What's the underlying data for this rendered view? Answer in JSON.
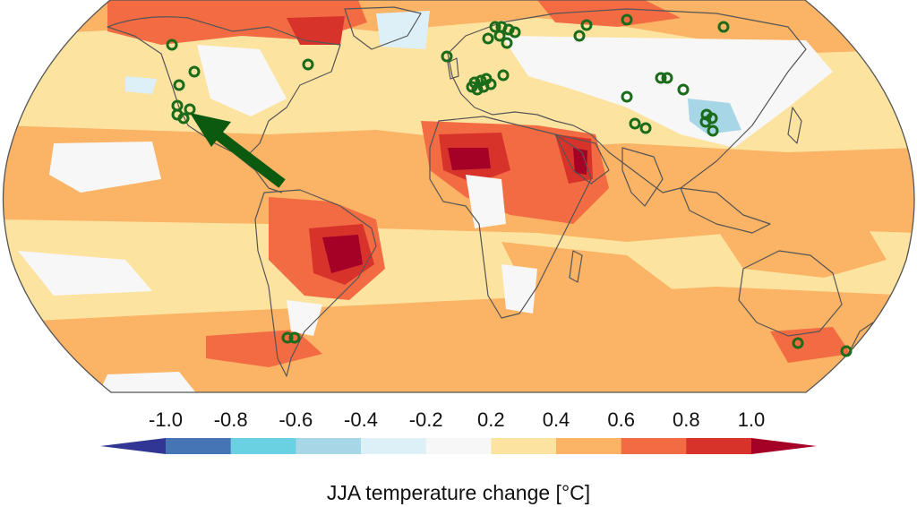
{
  "colorbar": {
    "title": "JJA temperature change [°C]",
    "tick_labels": [
      "-1.0",
      "-0.8",
      "-0.6",
      "-0.4",
      "-0.2",
      "0.2",
      "0.4",
      "0.6",
      "0.8",
      "1.0"
    ],
    "bin_colors": [
      "#4575b4",
      "#6ad1e3",
      "#a7d6e6",
      "#ddf0f7",
      "#f7f7f7",
      "#fde3a0",
      "#fbb365",
      "#f26b43",
      "#d7332b"
    ],
    "under_color": "#313695",
    "over_color": "#a50026"
  },
  "map": {
    "projection": "robinson",
    "ocean_background_color": "#fde3a0",
    "coastline_color": "#555555",
    "marker_color": "#1a6b1a",
    "arrow_color": "#0b5a10",
    "arrow_direction": "from Central America toward western North America",
    "marker_region_counts": {
      "western North America": 7,
      "eastern North America": 1,
      "Scandinavia": 8,
      "central Europe": 8,
      "northern Russia": 4,
      "Central Asia": 6,
      "East Asia / China": 4,
      "southern South America": 2,
      "southeastern Australia": 1,
      "New Zealand": 1
    }
  }
}
